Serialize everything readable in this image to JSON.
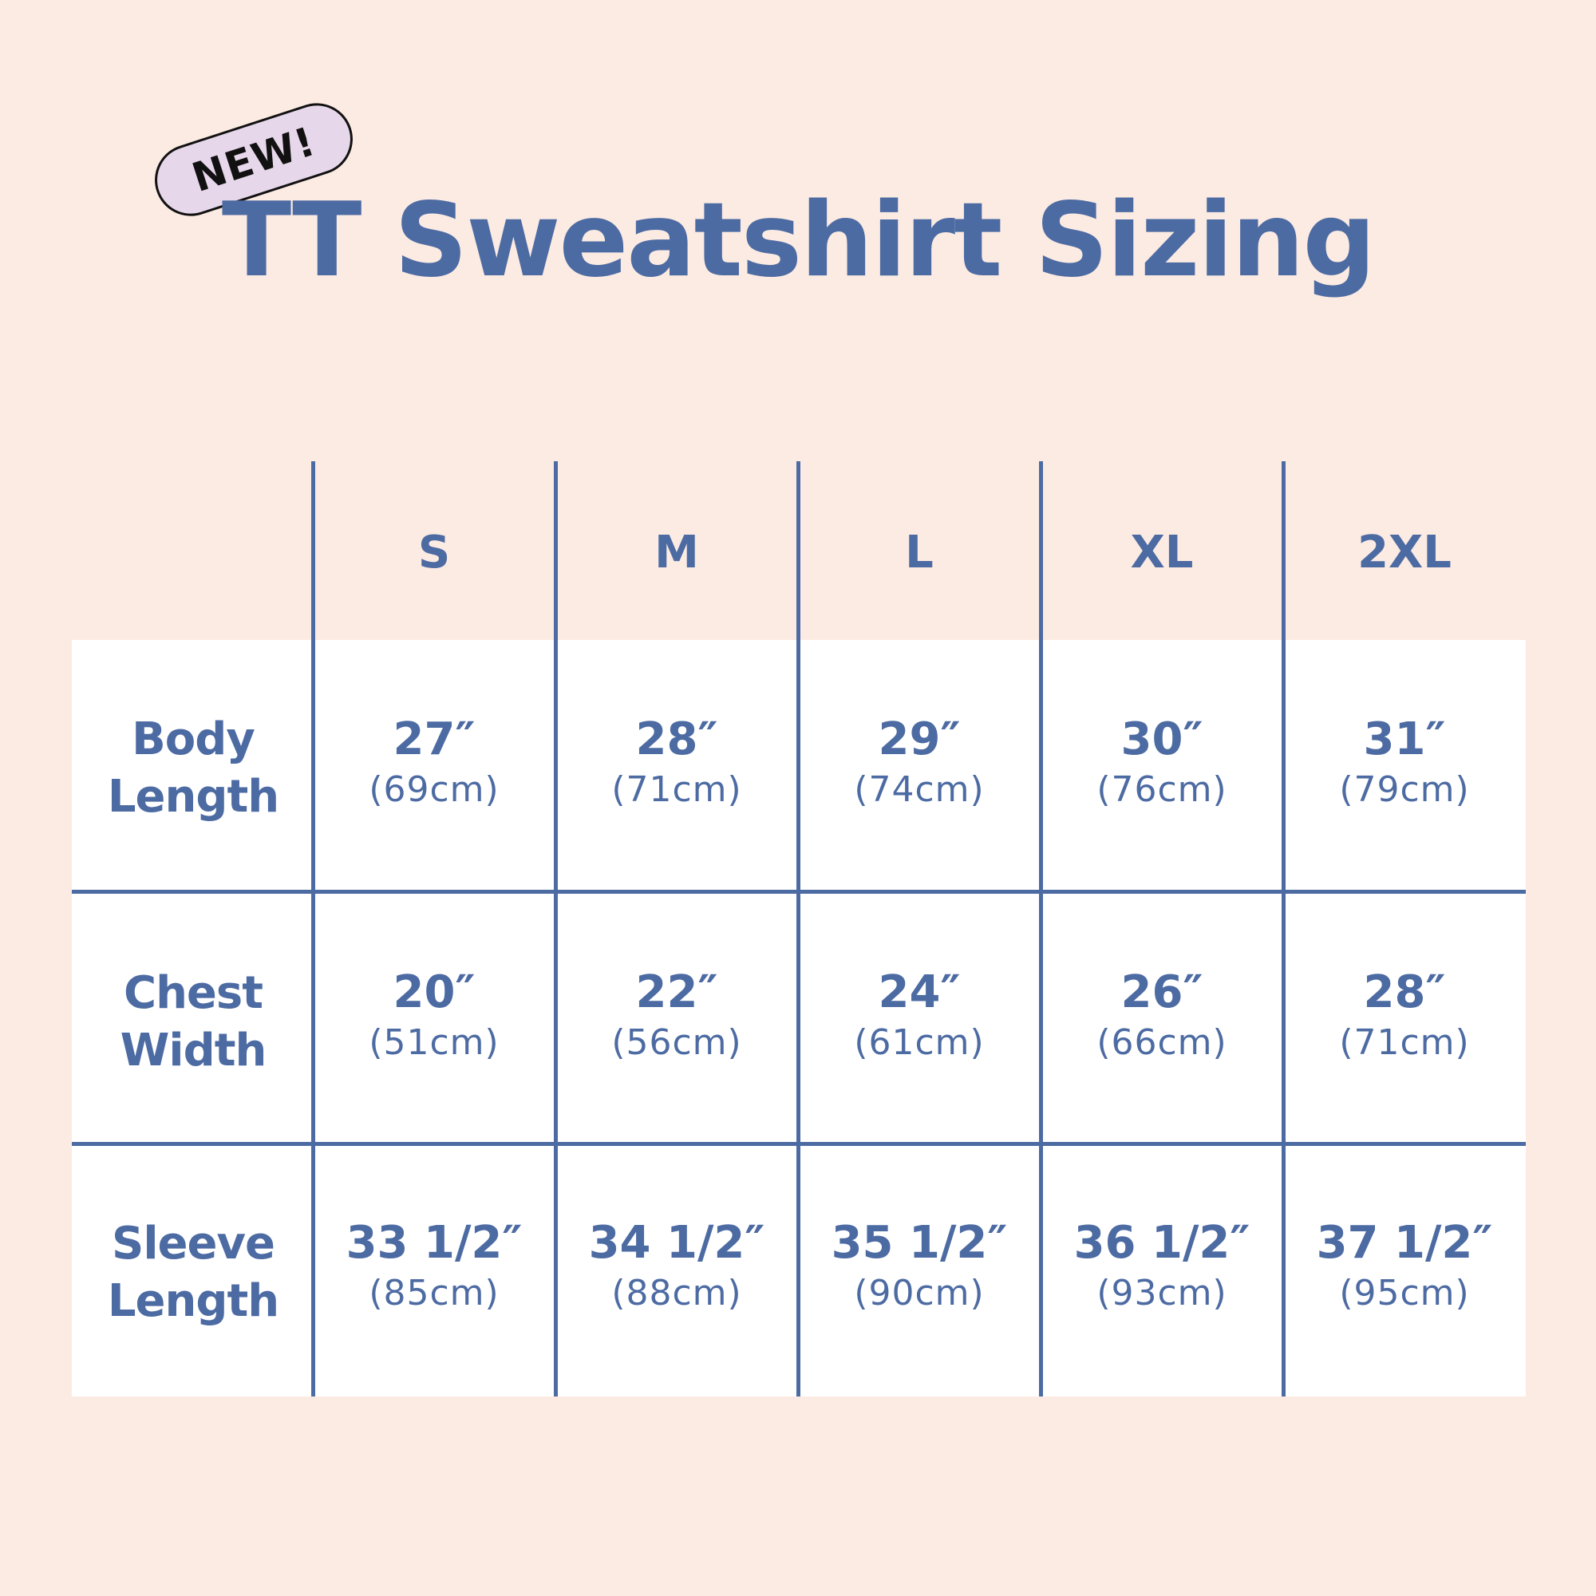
{
  "badge": {
    "label": "NEW!"
  },
  "title": "TT Sweatshirt Sizing",
  "sizes": [
    "S",
    "M",
    "L",
    "XL",
    "2XL"
  ],
  "rows": [
    {
      "label_line1": "Body",
      "label_line2": "Length",
      "cells": [
        {
          "in": "27″",
          "cm": "(69cm)"
        },
        {
          "in": "28″",
          "cm": "(71cm)"
        },
        {
          "in": "29″",
          "cm": "(74cm)"
        },
        {
          "in": "30″",
          "cm": "(76cm)"
        },
        {
          "in": "31″",
          "cm": "(79cm)"
        }
      ]
    },
    {
      "label_line1": "Chest",
      "label_line2": "Width",
      "cells": [
        {
          "in": "20″",
          "cm": "(51cm)"
        },
        {
          "in": "22″",
          "cm": "(56cm)"
        },
        {
          "in": "24″",
          "cm": "(61cm)"
        },
        {
          "in": "26″",
          "cm": "(66cm)"
        },
        {
          "in": "28″",
          "cm": "(71cm)"
        }
      ]
    },
    {
      "label_line1": "Sleeve",
      "label_line2": "Length",
      "cells": [
        {
          "in": "33 1/2″",
          "cm": "(85cm)"
        },
        {
          "in": "34 1/2″",
          "cm": "(88cm)"
        },
        {
          "in": "35 1/2″",
          "cm": "(90cm)"
        },
        {
          "in": "36 1/2″",
          "cm": "(93cm)"
        },
        {
          "in": "37 1/2″",
          "cm": "(95cm)"
        }
      ]
    }
  ],
  "colors": {
    "background": "#fcebe3",
    "accent": "#4d6ba3",
    "badge_fill": "#e7d7ea",
    "table_fill": "#ffffff"
  }
}
